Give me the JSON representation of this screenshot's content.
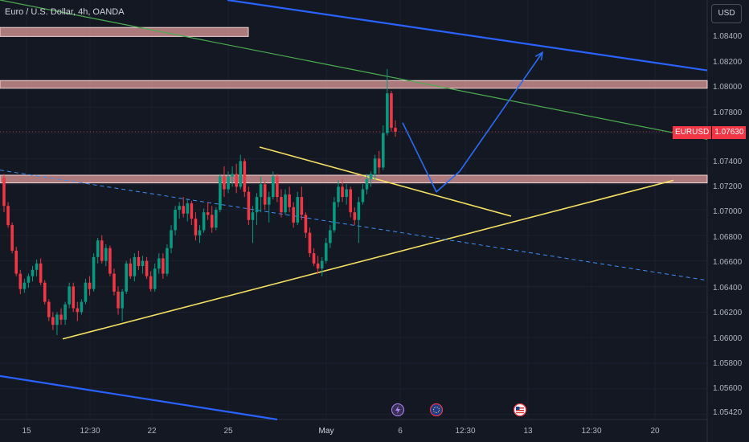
{
  "chart_data": {
    "type": "candlestick",
    "title": "Euro / U.S. Dollar, 4h, OANDA",
    "currency_button": "USD",
    "symbol_tag": "EURUSD",
    "last_price": "1.07630",
    "y_ticks": [
      "1.08400",
      "1.08200",
      "1.08000",
      "1.07800",
      "1.07400",
      "1.07200",
      "1.07000",
      "1.06800",
      "1.06600",
      "1.06400",
      "1.06200",
      "1.06000",
      "1.05800",
      "1.05600",
      "1.05420"
    ],
    "x_ticks": [
      "15",
      "12:30",
      "22",
      "25",
      "May",
      "6",
      "12:30",
      "13",
      "12:30",
      "20"
    ],
    "ylim": [
      1.0538,
      1.0866
    ],
    "colors": {
      "up": "#089981",
      "down": "#f23645",
      "zone": "#e8a0a0",
      "trend": "#f5e063",
      "channel": "#2962ff",
      "arrow": "#2a6cf0",
      "diag": "#4caf50"
    },
    "candles": [
      [
        1.0727,
        1.073,
        1.07,
        1.0705
      ],
      [
        1.0705,
        1.0708,
        1.0688,
        1.069
      ],
      [
        1.069,
        1.0692,
        1.0668,
        1.067
      ],
      [
        1.067,
        1.0673,
        1.065,
        1.0652
      ],
      [
        1.0652,
        1.0655,
        1.0636,
        1.064
      ],
      [
        1.064,
        1.0648,
        1.0637,
        1.0645
      ],
      [
        1.0645,
        1.0652,
        1.0641,
        1.065
      ],
      [
        1.065,
        1.0658,
        1.0646,
        1.0655
      ],
      [
        1.0655,
        1.0663,
        1.065,
        1.066
      ],
      [
        1.066,
        1.0664,
        1.0643,
        1.0645
      ],
      [
        1.0645,
        1.0647,
        1.0628,
        1.063
      ],
      [
        1.063,
        1.0632,
        1.0615,
        1.0618
      ],
      [
        1.0618,
        1.0622,
        1.0608,
        1.0612
      ],
      [
        1.0612,
        1.0622,
        1.0604,
        1.062
      ],
      [
        1.062,
        1.0625,
        1.0612,
        1.0616
      ],
      [
        1.0616,
        1.063,
        1.0612,
        1.0628
      ],
      [
        1.0628,
        1.0645,
        1.0625,
        1.0642
      ],
      [
        1.0642,
        1.0645,
        1.0622,
        1.0625
      ],
      [
        1.0625,
        1.063,
        1.0615,
        1.0622
      ],
      [
        1.0622,
        1.0632,
        1.062,
        1.063
      ],
      [
        1.063,
        1.0648,
        1.0628,
        1.0645
      ],
      [
        1.0645,
        1.065,
        1.0635,
        1.064
      ],
      [
        1.064,
        1.0668,
        1.0638,
        1.0665
      ],
      [
        1.0665,
        1.068,
        1.066,
        1.0678
      ],
      [
        1.0678,
        1.0682,
        1.066,
        1.0662
      ],
      [
        1.0662,
        1.0675,
        1.0658,
        1.0672
      ],
      [
        1.0672,
        1.0674,
        1.065,
        1.0652
      ],
      [
        1.0652,
        1.0656,
        1.0635,
        1.0638
      ],
      [
        1.0638,
        1.0642,
        1.062,
        1.0625
      ],
      [
        1.0625,
        1.064,
        1.0615,
        1.0638
      ],
      [
        1.0638,
        1.0662,
        1.0636,
        1.066
      ],
      [
        1.066,
        1.0664,
        1.0648,
        1.065
      ],
      [
        1.065,
        1.0668,
        1.0646,
        1.0665
      ],
      [
        1.0665,
        1.067,
        1.0655,
        1.0658
      ],
      [
        1.0658,
        1.0666,
        1.0652,
        1.0662
      ],
      [
        1.0662,
        1.0665,
        1.0648,
        1.065
      ],
      [
        1.065,
        1.0654,
        1.0638,
        1.064
      ],
      [
        1.064,
        1.066,
        1.0638,
        1.0656
      ],
      [
        1.0656,
        1.0668,
        1.0652,
        1.0664
      ],
      [
        1.0664,
        1.0668,
        1.0648,
        1.0652
      ],
      [
        1.0652,
        1.0675,
        1.065,
        1.0672
      ],
      [
        1.0672,
        1.069,
        1.0668,
        1.0686
      ],
      [
        1.0686,
        1.0705,
        1.0682,
        1.0702
      ],
      [
        1.0702,
        1.0708,
        1.0695,
        1.0705
      ],
      [
        1.0705,
        1.0712,
        1.0696,
        1.0699
      ],
      [
        1.0699,
        1.071,
        1.0693,
        1.0707
      ],
      [
        1.0707,
        1.0709,
        1.069,
        1.0695
      ],
      [
        1.0695,
        1.07,
        1.0678,
        1.0682
      ],
      [
        1.0682,
        1.069,
        1.0676,
        1.0686
      ],
      [
        1.0686,
        1.0703,
        1.0684,
        1.07
      ],
      [
        1.07,
        1.0708,
        1.0694,
        1.0698
      ],
      [
        1.0698,
        1.0705,
        1.0684,
        1.0688
      ],
      [
        1.0688,
        1.0704,
        1.0686,
        1.0702
      ],
      [
        1.0702,
        1.073,
        1.07,
        1.0728
      ],
      [
        1.0728,
        1.0736,
        1.0712,
        1.0718
      ],
      [
        1.0718,
        1.0732,
        1.0715,
        1.0728
      ],
      [
        1.0728,
        1.0736,
        1.072,
        1.073
      ],
      [
        1.073,
        1.0738,
        1.0715,
        1.072
      ],
      [
        1.072,
        1.0745,
        1.0718,
        1.074
      ],
      [
        1.074,
        1.0742,
        1.0712,
        1.0716
      ],
      [
        1.0716,
        1.072,
        1.069,
        1.0694
      ],
      [
        1.0694,
        1.0705,
        1.0676,
        1.07
      ],
      [
        1.07,
        1.0715,
        1.069,
        1.0712
      ],
      [
        1.0712,
        1.0728,
        1.07,
        1.0722
      ],
      [
        1.0722,
        1.0725,
        1.0702,
        1.0706
      ],
      [
        1.0706,
        1.0716,
        1.0692,
        1.0712
      ],
      [
        1.0712,
        1.0732,
        1.071,
        1.0728
      ],
      [
        1.0728,
        1.073,
        1.0708,
        1.0712
      ],
      [
        1.0712,
        1.0718,
        1.0696,
        1.07
      ],
      [
        1.07,
        1.0718,
        1.0698,
        1.0714
      ],
      [
        1.0714,
        1.072,
        1.07,
        1.0704
      ],
      [
        1.0704,
        1.0708,
        1.0688,
        1.0692
      ],
      [
        1.0692,
        1.0716,
        1.069,
        1.0712
      ],
      [
        1.0712,
        1.072,
        1.0694,
        1.0698
      ],
      [
        1.0698,
        1.07,
        1.068,
        1.0684
      ],
      [
        1.0684,
        1.0688,
        1.0665,
        1.0668
      ],
      [
        1.0668,
        1.0672,
        1.0658,
        1.066
      ],
      [
        1.066,
        1.0666,
        1.0652,
        1.0656
      ],
      [
        1.0656,
        1.0665,
        1.065,
        1.0662
      ],
      [
        1.0662,
        1.068,
        1.066,
        1.0676
      ],
      [
        1.0676,
        1.069,
        1.0672,
        1.0686
      ],
      [
        1.0686,
        1.0712,
        1.0684,
        1.0708
      ],
      [
        1.0708,
        1.0725,
        1.0704,
        1.072
      ],
      [
        1.072,
        1.0726,
        1.0708,
        1.0712
      ],
      [
        1.0712,
        1.0722,
        1.0706,
        1.0718
      ],
      [
        1.0718,
        1.072,
        1.0696,
        1.07
      ],
      [
        1.07,
        1.0704,
        1.069,
        1.0694
      ],
      [
        1.0694,
        1.0712,
        1.0676,
        1.0708
      ],
      [
        1.0708,
        1.0722,
        1.0706,
        1.0718
      ],
      [
        1.0718,
        1.073,
        1.0714,
        1.0726
      ],
      [
        1.0726,
        1.0732,
        1.072,
        1.073
      ],
      [
        1.073,
        1.0745,
        1.0726,
        1.0742
      ],
      [
        1.0742,
        1.0748,
        1.073,
        1.0735
      ],
      [
        1.0735,
        1.0768,
        1.0733,
        1.0762
      ],
      [
        1.0762,
        1.0812,
        1.076,
        1.0793
      ],
      [
        1.0793,
        1.0795,
        1.0763,
        1.0766
      ],
      [
        1.0766,
        1.0772,
        1.0759,
        1.0763
      ]
    ],
    "zones": [
      [
        1.08375,
        1.08445
      ],
      [
        1.0797,
        1.0803
      ],
      [
        1.0723,
        1.0729
      ]
    ],
    "trendlines": [
      {
        "kind": "yellow",
        "from": [
          78,
          1.0601
        ],
        "to": [
          838,
          1.0725
        ]
      },
      {
        "kind": "yellow",
        "from": [
          323,
          1.0751
        ],
        "to": [
          636,
          1.0697
        ]
      },
      {
        "kind": "dashed",
        "from": [
          0,
          1.0733
        ],
        "to": [
          878,
          1.0647
        ]
      },
      {
        "kind": "channel",
        "from": [
          283,
          1.0866
        ],
        "to": [
          880,
          1.0811
        ]
      },
      {
        "kind": "channel",
        "from": [
          0,
          1.0572
        ],
        "to": [
          345,
          1.0538
        ]
      },
      {
        "kind": "diag",
        "from": [
          0,
          1.0866
        ],
        "to": [
          880,
          1.0757
        ]
      }
    ],
    "forecast": [
      [
        501,
        1.077
      ],
      [
        543,
        1.0716
      ],
      [
        572,
        1.0732
      ],
      [
        675,
        1.0825
      ]
    ],
    "events": [
      {
        "x": 495,
        "icon": "lightning"
      },
      {
        "x": 543,
        "icon": "eu-flag"
      },
      {
        "x": 647,
        "icon": "us-flag"
      }
    ]
  }
}
